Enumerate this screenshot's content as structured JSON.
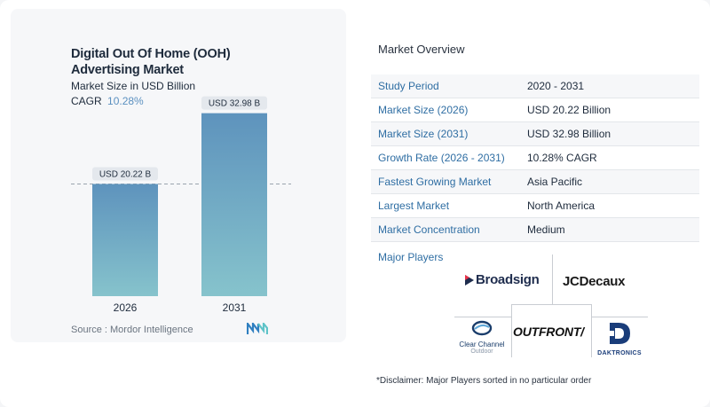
{
  "header": {
    "title_line1": "Digital Out Of Home (OOH)",
    "title_line2": "Advertising Market",
    "subtitle": "Market Size in USD Billion",
    "cagr_label": "CAGR",
    "cagr_value": "10.28%"
  },
  "chart_data": {
    "type": "bar",
    "categories": [
      "2026",
      "2031"
    ],
    "values": [
      20.22,
      32.98
    ],
    "data_labels": [
      "USD 20.22 B",
      "USD 32.98 B"
    ],
    "title": "Digital Out Of Home (OOH) Advertising Market",
    "subtitle": "Market Size in USD Billion",
    "ylim": [
      0,
      35
    ],
    "grid": false,
    "reference_line_value": 20.22,
    "colors": {
      "bar_top": "#5e93bd",
      "bar_bottom": "#86c3cc",
      "ref_line": "#9aa4ae"
    }
  },
  "footer": {
    "source": "Source :  Mordor Intelligence",
    "disclaimer": "*Disclaimer: Major Players sorted in no particular order"
  },
  "overview": {
    "title": "Market Overview",
    "rows": [
      {
        "label": "Study Period",
        "value": "2020 - 2031"
      },
      {
        "label": "Market Size (2026)",
        "value": "USD 20.22 Billion"
      },
      {
        "label": "Market Size (2031)",
        "value": "USD 32.98 Billion"
      },
      {
        "label": "Growth Rate (2026 - 2031)",
        "value": "10.28% CAGR"
      },
      {
        "label": "Fastest Growing Market",
        "value": "Asia Pacific"
      },
      {
        "label": "Largest Market",
        "value": "North America"
      },
      {
        "label": "Market Concentration",
        "value": "Medium"
      }
    ]
  },
  "players": {
    "title": "Major Players",
    "broadsign": "Broadsign",
    "jcdecaux": "JCDecaux",
    "clear_channel": "Clear Channel",
    "clear_channel_sub": "Outdoor",
    "outfront": "OUTFRONT/",
    "daktronics": "DAKTRONICS"
  }
}
